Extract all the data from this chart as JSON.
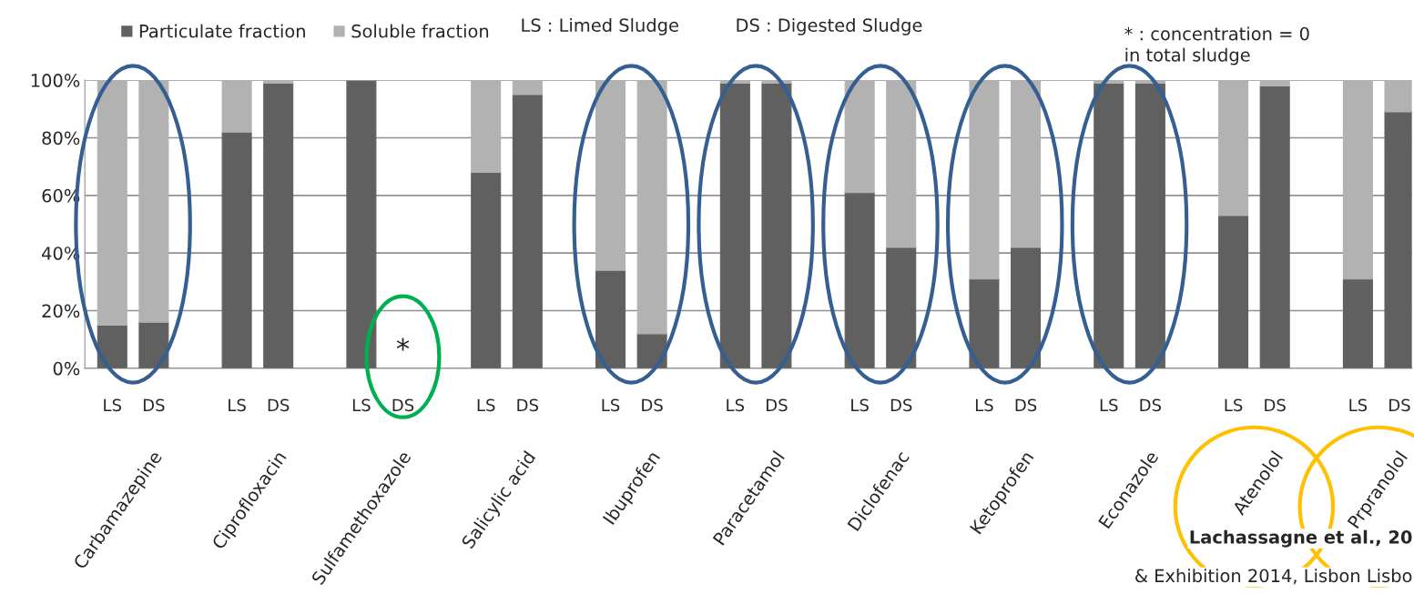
{
  "chart_data": {
    "type": "bar",
    "stacked": true,
    "categories": [
      "LS",
      "DS",
      null,
      "LS",
      "DS",
      null,
      "LS",
      "DS",
      null,
      "LS",
      "DS",
      null,
      "LS",
      "DS",
      null,
      "LS",
      "DS",
      null,
      "LS",
      "DS",
      null,
      "LS",
      "DS",
      null,
      "LS",
      "DS",
      null,
      "LS",
      "DS",
      null,
      "LS",
      "DS"
    ],
    "series": [
      {
        "name": "Particulate fraction",
        "color": "#606060",
        "values": [
          15,
          16,
          null,
          82,
          99,
          null,
          100,
          null,
          null,
          68,
          95,
          null,
          34,
          12,
          null,
          99,
          99,
          null,
          61,
          42,
          null,
          31,
          42,
          null,
          99,
          99,
          null,
          53,
          98,
          null,
          31,
          89
        ]
      },
      {
        "name": "Soluble fraction",
        "color": "#b2b2b2",
        "values": [
          85,
          84,
          null,
          18,
          1,
          null,
          0,
          null,
          null,
          32,
          5,
          null,
          66,
          88,
          null,
          1,
          1,
          null,
          39,
          58,
          null,
          69,
          58,
          null,
          1,
          1,
          null,
          47,
          2,
          null,
          69,
          11
        ]
      }
    ],
    "ylim": [
      0,
      100
    ],
    "yticks": [
      {
        "value": 0,
        "label": "0%"
      },
      {
        "value": 20,
        "label": "20%"
      },
      {
        "value": 40,
        "label": "40%"
      },
      {
        "value": 60,
        "label": "60%"
      },
      {
        "value": 80,
        "label": "80%"
      },
      {
        "value": 100,
        "label": "100%"
      }
    ],
    "grid": "y",
    "legend": "top left",
    "annotations": [
      "LS : Limed Sludge",
      "DS : Digested Sludge",
      "* : concentration = 0\nin total sludge",
      "*",
      "Carbamazepine",
      "Ciprofloxacin",
      "Sulfamethoxazole",
      "Salicylic acid",
      "Ibuprofen",
      "Paracetamol",
      "Diclofenac",
      "Ketoprofen",
      "Econazole",
      "Atenolol",
      "Prpranolol",
      "Lachassagne et al., 20",
      "& Exhibition 2014, Lisbon Lisbo"
    ]
  }
}
